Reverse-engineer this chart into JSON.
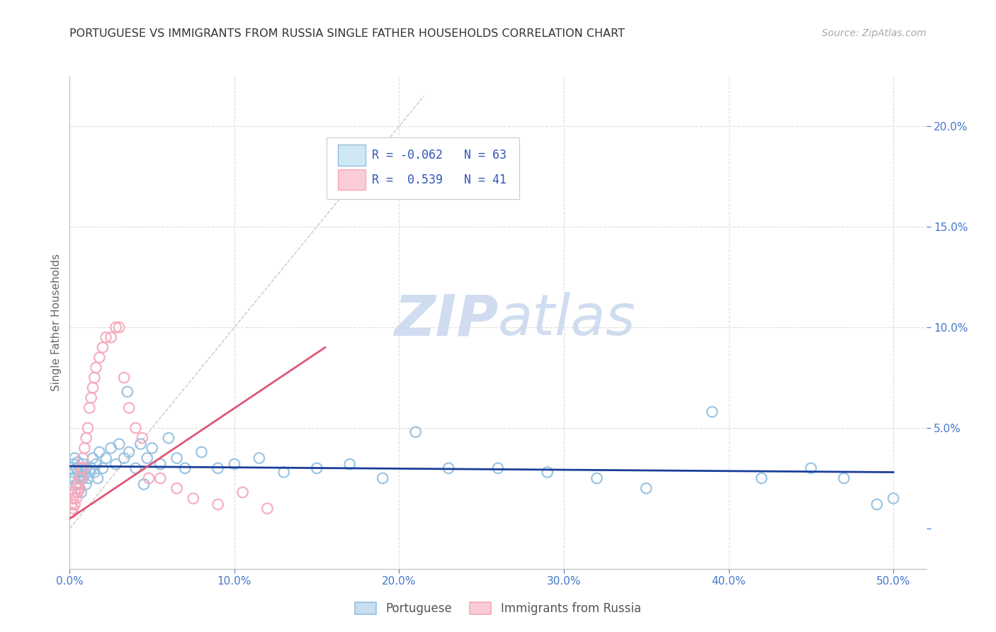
{
  "title": "PORTUGUESE VS IMMIGRANTS FROM RUSSIA SINGLE FATHER HOUSEHOLDS CORRELATION CHART",
  "source": "Source: ZipAtlas.com",
  "ylabel_label": "Single Father Households",
  "color_blue": "#92c0e0",
  "color_pink": "#f4a8bb",
  "color_blue_line": "#1a3f99",
  "color_pink_line": "#e05575",
  "color_diag": "#cccccc",
  "color_axis_labels": "#4477cc",
  "color_title": "#333333",
  "watermark_zip": "ZIP",
  "watermark_atlas": "atlas",
  "portuguese_x": [
    0.001,
    0.002,
    0.002,
    0.003,
    0.003,
    0.004,
    0.004,
    0.005,
    0.005,
    0.006,
    0.006,
    0.007,
    0.007,
    0.008,
    0.008,
    0.009,
    0.01,
    0.01,
    0.011,
    0.012,
    0.013,
    0.014,
    0.015,
    0.016,
    0.017,
    0.018,
    0.02,
    0.022,
    0.025,
    0.028,
    0.03,
    0.033,
    0.036,
    0.04,
    0.043,
    0.047,
    0.05,
    0.055,
    0.06,
    0.065,
    0.07,
    0.08,
    0.09,
    0.1,
    0.115,
    0.13,
    0.15,
    0.17,
    0.19,
    0.21,
    0.23,
    0.26,
    0.29,
    0.32,
    0.35,
    0.39,
    0.42,
    0.45,
    0.47,
    0.49,
    0.5,
    0.035,
    0.045
  ],
  "portuguese_y": [
    0.03,
    0.028,
    0.032,
    0.025,
    0.035,
    0.022,
    0.03,
    0.028,
    0.033,
    0.02,
    0.025,
    0.03,
    0.018,
    0.032,
    0.025,
    0.028,
    0.022,
    0.03,
    0.025,
    0.028,
    0.03,
    0.035,
    0.028,
    0.032,
    0.025,
    0.038,
    0.03,
    0.035,
    0.04,
    0.032,
    0.042,
    0.035,
    0.038,
    0.03,
    0.042,
    0.035,
    0.04,
    0.032,
    0.045,
    0.035,
    0.03,
    0.038,
    0.03,
    0.032,
    0.035,
    0.028,
    0.03,
    0.032,
    0.025,
    0.048,
    0.03,
    0.03,
    0.028,
    0.025,
    0.02,
    0.058,
    0.025,
    0.03,
    0.025,
    0.012,
    0.015,
    0.068,
    0.022
  ],
  "russia_x": [
    0.001,
    0.001,
    0.002,
    0.002,
    0.003,
    0.003,
    0.004,
    0.004,
    0.005,
    0.005,
    0.006,
    0.006,
    0.007,
    0.007,
    0.008,
    0.008,
    0.009,
    0.01,
    0.011,
    0.012,
    0.013,
    0.014,
    0.015,
    0.016,
    0.018,
    0.02,
    0.022,
    0.025,
    0.028,
    0.03,
    0.033,
    0.036,
    0.04,
    0.044,
    0.048,
    0.055,
    0.065,
    0.075,
    0.09,
    0.105,
    0.12
  ],
  "russia_y": [
    0.008,
    0.012,
    0.01,
    0.015,
    0.012,
    0.018,
    0.015,
    0.02,
    0.018,
    0.022,
    0.02,
    0.025,
    0.025,
    0.03,
    0.03,
    0.035,
    0.04,
    0.045,
    0.05,
    0.06,
    0.065,
    0.07,
    0.075,
    0.08,
    0.085,
    0.09,
    0.095,
    0.095,
    0.1,
    0.1,
    0.075,
    0.06,
    0.05,
    0.045,
    0.025,
    0.025,
    0.02,
    0.015,
    0.012,
    0.018,
    0.01
  ],
  "port_line_x": [
    0.0,
    0.5
  ],
  "port_line_y": [
    0.031,
    0.028
  ],
  "russ_line_x": [
    0.0,
    0.155
  ],
  "russ_line_y": [
    0.005,
    0.09
  ],
  "xlim": [
    0.0,
    0.52
  ],
  "ylim": [
    -0.02,
    0.225
  ],
  "xticks": [
    0.0,
    0.1,
    0.2,
    0.3,
    0.4,
    0.5
  ],
  "yticks": [
    0.0,
    0.05,
    0.1,
    0.15,
    0.2
  ],
  "xtick_labels": [
    "0.0%",
    "10.0%",
    "20.0%",
    "30.0%",
    "40.0%",
    "50.0%"
  ],
  "ytick_labels": [
    "",
    "5.0%",
    "10.0%",
    "15.0%",
    "20.0%"
  ]
}
